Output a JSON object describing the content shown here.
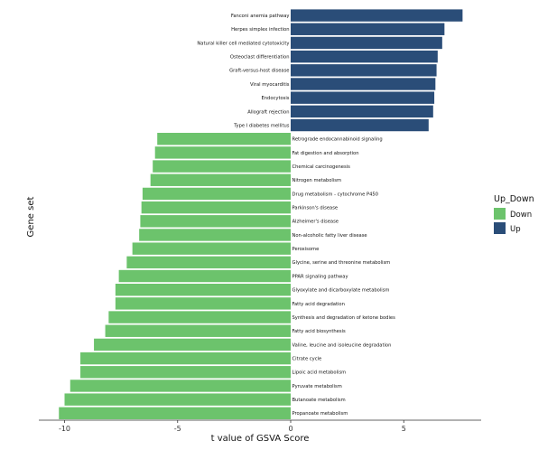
{
  "chart_data": {
    "type": "bar",
    "orientation": "horizontal",
    "xlabel": "t value of GSVA Score",
    "ylabel": "Gene set",
    "xlim": [
      -10.5,
      8.5
    ],
    "xticks": [
      -10,
      -5,
      0,
      5
    ],
    "grid": false,
    "legend": {
      "title": "Up_Down",
      "placement": "right",
      "entries": [
        {
          "name": "Down",
          "color": "#6cc36c"
        },
        {
          "name": "Up",
          "color": "#2a4d78"
        }
      ]
    },
    "colors": {
      "Down": "#6cc36c",
      "Up": "#2a4d78"
    },
    "bars": [
      {
        "category": "Fanconi anemia pathway",
        "value": 7.6,
        "group": "Up"
      },
      {
        "category": "Herpes simplex infection",
        "value": 6.8,
        "group": "Up"
      },
      {
        "category": "Natural killer cell mediated cytotoxicity",
        "value": 6.7,
        "group": "Up"
      },
      {
        "category": "Osteoclast differentiation",
        "value": 6.5,
        "group": "Up"
      },
      {
        "category": "Graft-versus-host disease",
        "value": 6.45,
        "group": "Up"
      },
      {
        "category": "Viral myocarditis",
        "value": 6.4,
        "group": "Up"
      },
      {
        "category": "Endocytosis",
        "value": 6.35,
        "group": "Up"
      },
      {
        "category": "Allograft rejection",
        "value": 6.3,
        "group": "Up"
      },
      {
        "category": "Type I diabetes mellitus",
        "value": 6.1,
        "group": "Up"
      },
      {
        "category": "Retrograde endocannabinoid signaling",
        "value": -5.9,
        "group": "Down"
      },
      {
        "category": "Fat digestion and absorption",
        "value": -6.0,
        "group": "Down"
      },
      {
        "category": "Chemical carcinogenesis",
        "value": -6.1,
        "group": "Down"
      },
      {
        "category": "Nitrogen metabolism",
        "value": -6.2,
        "group": "Down"
      },
      {
        "category": "Drug metabolism - cytochrome P450",
        "value": -6.55,
        "group": "Down"
      },
      {
        "category": "Parkinson's disease",
        "value": -6.6,
        "group": "Down"
      },
      {
        "category": "Alzheimer's disease",
        "value": -6.65,
        "group": "Down"
      },
      {
        "category": "Non-alcoholic fatty liver disease",
        "value": -6.7,
        "group": "Down"
      },
      {
        "category": "Peroxisome",
        "value": -7.0,
        "group": "Down"
      },
      {
        "category": "Glycine, serine and threonine metabolism",
        "value": -7.25,
        "group": "Down"
      },
      {
        "category": "PPAR signaling pathway",
        "value": -7.6,
        "group": "Down"
      },
      {
        "category": "Glyoxylate and dicarboxylate metabolism",
        "value": -7.75,
        "group": "Down"
      },
      {
        "category": "Fatty acid degradation",
        "value": -7.75,
        "group": "Down"
      },
      {
        "category": "Synthesis and degradation of ketone bodies",
        "value": -8.05,
        "group": "Down"
      },
      {
        "category": "Fatty acid biosynthesis",
        "value": -8.2,
        "group": "Down"
      },
      {
        "category": "Valine, leucine and isoleucine degradation",
        "value": -8.7,
        "group": "Down"
      },
      {
        "category": "Citrate cycle",
        "value": -9.3,
        "group": "Down"
      },
      {
        "category": "Lipoic acid metabolism",
        "value": -9.3,
        "group": "Down"
      },
      {
        "category": "Pyruvate metabolism",
        "value": -9.75,
        "group": "Down"
      },
      {
        "category": "Butanoate metabolism",
        "value": -10.0,
        "group": "Down"
      },
      {
        "category": "Propanoate metabolism",
        "value": -10.25,
        "group": "Down"
      }
    ]
  }
}
